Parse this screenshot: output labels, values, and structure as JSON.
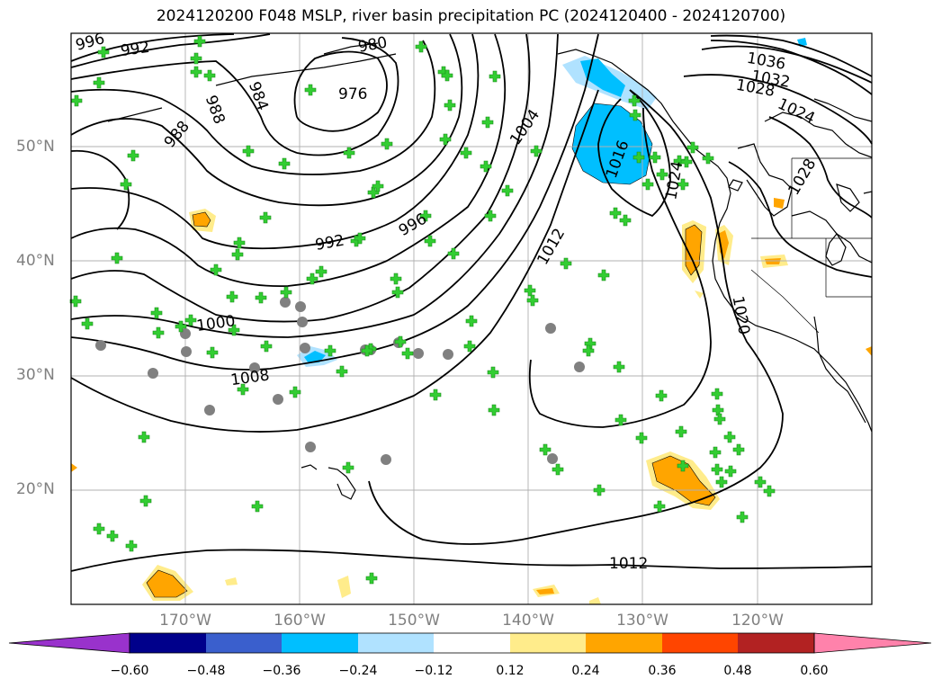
{
  "title": "2024120200 F048 MSLP, river basin precipitation PC (2024120400 - 2024120700)",
  "lat_labels": [
    "50°N",
    "40°N",
    "30°N",
    "20°N"
  ],
  "lon_labels": [
    "170°W",
    "160°W",
    "150°W",
    "140°W",
    "130°W",
    "120°W"
  ],
  "isobar_labels": [
    "996",
    "992",
    "980",
    "976",
    "988",
    "988",
    "984",
    "1004",
    "1016",
    "1024",
    "1036",
    "1032",
    "1028",
    "1024",
    "1028",
    "992",
    "996",
    "1012",
    "1000",
    "1008",
    "1020",
    "1012"
  ],
  "colorbar": {
    "tick_labels": [
      "−0.60",
      "−0.48",
      "−0.36",
      "−0.24",
      "−0.12",
      "0.12",
      "0.24",
      "0.36",
      "0.48",
      "0.60"
    ],
    "colors": [
      "#9932cc",
      "#00008b",
      "#3a5fcd",
      "#00bfff",
      "#b0e2ff",
      "#ffffff",
      "#ffec8b",
      "#ffa500",
      "#ff4500",
      "#b22222",
      "#ff82ab"
    ]
  },
  "colors": {
    "isobar": "#000000",
    "grid": "#b0b0b0",
    "station_marker": "#32cd32",
    "station_circle": "#808080",
    "negative_pc": "#00bfff",
    "negative_pc_light": "#b0e2ff",
    "positive_pc": "#ffa500",
    "positive_pc_light": "#ffec8b"
  }
}
